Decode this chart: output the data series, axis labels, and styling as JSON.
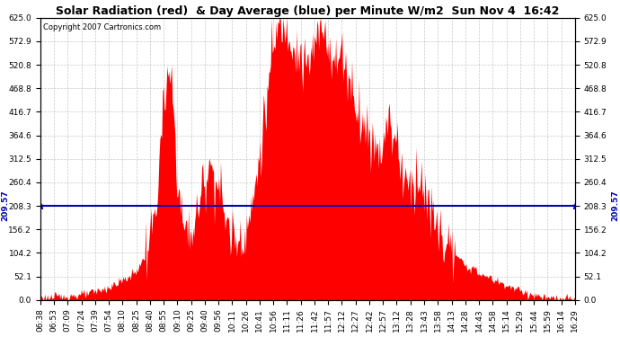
{
  "title": "Solar Radiation (red)  & Day Average (blue) per Minute W/m2  Sun Nov 4  16:42",
  "copyright_text": "Copyright 2007 Cartronics.com",
  "y_ticks": [
    0.0,
    52.1,
    104.2,
    156.2,
    208.3,
    260.4,
    312.5,
    364.6,
    416.7,
    468.8,
    520.8,
    572.9,
    625.0
  ],
  "y_min": 0.0,
  "y_max": 625.0,
  "avg_line_y": 209.57,
  "avg_label": "209.57",
  "bar_color": "#ff0000",
  "avg_line_color": "#0000bb",
  "background_color": "#ffffff",
  "grid_color": "#bbbbbb",
  "x_labels": [
    "06:38",
    "06:53",
    "07:09",
    "07:24",
    "07:39",
    "07:54",
    "08:10",
    "08:25",
    "08:40",
    "08:55",
    "09:10",
    "09:25",
    "09:40",
    "09:56",
    "10:11",
    "10:26",
    "10:41",
    "10:56",
    "11:11",
    "11:26",
    "11:42",
    "11:57",
    "12:12",
    "12:27",
    "12:42",
    "12:57",
    "13:12",
    "13:28",
    "13:43",
    "13:58",
    "14:13",
    "14:28",
    "14:43",
    "14:58",
    "15:14",
    "15:29",
    "15:44",
    "15:59",
    "16:14",
    "16:29"
  ],
  "n_points": 600,
  "title_fontsize": 9,
  "tick_fontsize": 6.5,
  "copyright_fontsize": 6
}
